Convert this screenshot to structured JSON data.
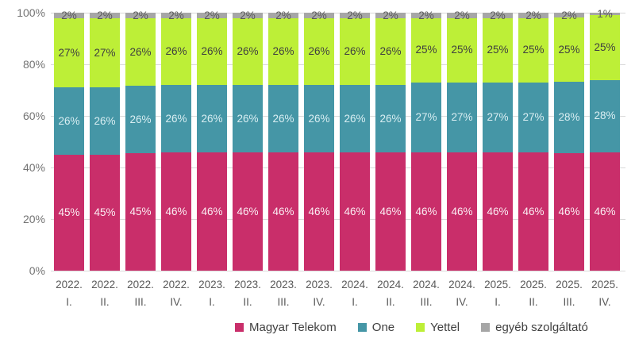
{
  "chart_data": {
    "type": "bar",
    "variant": "stacked-100",
    "title": "",
    "xlabel": "",
    "ylabel": "",
    "ylim": [
      0,
      100
    ],
    "grid": true,
    "legend_position": "bottom",
    "y_ticks": [
      "0%",
      "20%",
      "40%",
      "60%",
      "80%",
      "100%"
    ],
    "categories": [
      {
        "year": "2022.",
        "quarter": "I."
      },
      {
        "year": "2022.",
        "quarter": "II."
      },
      {
        "year": "2022.",
        "quarter": "III."
      },
      {
        "year": "2022.",
        "quarter": "IV."
      },
      {
        "year": "2023.",
        "quarter": "I."
      },
      {
        "year": "2023.",
        "quarter": "II."
      },
      {
        "year": "2023.",
        "quarter": "III."
      },
      {
        "year": "2023.",
        "quarter": "IV."
      },
      {
        "year": "2024.",
        "quarter": "I."
      },
      {
        "year": "2024.",
        "quarter": "II."
      },
      {
        "year": "2024.",
        "quarter": "III."
      },
      {
        "year": "2024.",
        "quarter": "IV."
      },
      {
        "year": "2025.",
        "quarter": "I."
      },
      {
        "year": "2025.",
        "quarter": "II."
      },
      {
        "year": "2025.",
        "quarter": "III."
      },
      {
        "year": "2025.",
        "quarter": "IV."
      }
    ],
    "series": [
      {
        "name": "Magyar Telekom",
        "color": "#c92e6a",
        "label_color": "#fbeef3",
        "values": [
          45,
          45,
          45,
          46,
          46,
          46,
          46,
          46,
          46,
          46,
          46,
          46,
          46,
          46,
          46,
          46
        ],
        "labels": [
          "45%",
          "45%",
          "45%",
          "46%",
          "46%",
          "46%",
          "46%",
          "46%",
          "46%",
          "46%",
          "46%",
          "46%",
          "46%",
          "46%",
          "46%",
          "46%"
        ]
      },
      {
        "name": "One",
        "color": "#4596a6",
        "label_color": "#d9eef2",
        "values": [
          26,
          26,
          26,
          26,
          26,
          26,
          26,
          26,
          26,
          26,
          27,
          27,
          27,
          27,
          28,
          28
        ],
        "labels": [
          "26%",
          "26%",
          "26%",
          "26%",
          "26%",
          "26%",
          "26%",
          "26%",
          "26%",
          "26%",
          "27%",
          "27%",
          "27%",
          "27%",
          "28%",
          "28%"
        ]
      },
      {
        "name": "Yettel",
        "color": "#bdef37",
        "label_color": "#404040",
        "values": [
          27,
          27,
          26,
          26,
          26,
          26,
          26,
          26,
          26,
          26,
          25,
          25,
          25,
          25,
          25,
          25
        ],
        "labels": [
          "27%",
          "27%",
          "26%",
          "26%",
          "26%",
          "26%",
          "26%",
          "26%",
          "26%",
          "26%",
          "25%",
          "25%",
          "25%",
          "25%",
          "25%",
          "25%"
        ]
      },
      {
        "name": "egyéb szolgáltató",
        "color": "#a6a6a6",
        "label_color": "#595959",
        "values": [
          2,
          2,
          2,
          2,
          2,
          2,
          2,
          2,
          2,
          2,
          2,
          2,
          2,
          2,
          2,
          1
        ],
        "labels": [
          "2%",
          "2%",
          "2%",
          "2%",
          "2%",
          "2%",
          "2%",
          "2%",
          "2%",
          "2%",
          "2%",
          "2%",
          "2%",
          "2%",
          "2%",
          "1%"
        ]
      }
    ]
  }
}
